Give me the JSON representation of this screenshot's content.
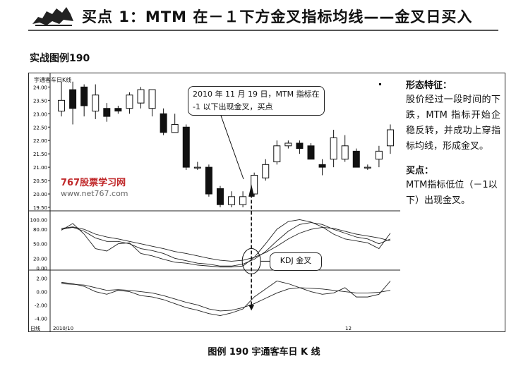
{
  "header": {
    "title": "买点 1：MTM 在－１下方金叉指标均线——金叉日买入",
    "figure_label": "实战图例190"
  },
  "chart": {
    "stock_name": "宇通客车日K线",
    "callout": "2010 年 11 月 19 日，MTM 指标在 -1 以下出现金叉，买点",
    "kdj_label": "KDJ 金叉",
    "watermark": "767股票学习网",
    "watermark_url": "www.net767.com",
    "date_left": "2010/10",
    "date_right": "12",
    "corner_label": "日线"
  },
  "chart_data": [
    {
      "type": "candlestick",
      "title": "宇通客车日K线",
      "y_ticks": [
        "24.00",
        "23.50",
        "23.00",
        "22.50",
        "22.00",
        "21.50",
        "21.00",
        "20.50",
        "20.00",
        "19.50"
      ],
      "ylim": [
        19.5,
        24.3
      ],
      "x_tick_labels": [
        "2010/10",
        "12"
      ],
      "candles": [
        {
          "open": 23.1,
          "close": 23.5,
          "high": 24.2,
          "low": 22.9
        },
        {
          "open": 23.9,
          "close": 23.2,
          "high": 24.2,
          "low": 22.6
        },
        {
          "open": 24.0,
          "close": 23.3,
          "high": 24.1,
          "low": 22.9
        },
        {
          "open": 23.1,
          "close": 23.7,
          "high": 24.1,
          "low": 22.8
        },
        {
          "open": 23.2,
          "close": 22.9,
          "high": 23.4,
          "low": 22.7
        },
        {
          "open": 23.2,
          "close": 23.1,
          "high": 23.3,
          "low": 23.0
        },
        {
          "open": 23.2,
          "close": 23.7,
          "high": 23.8,
          "low": 23.0
        },
        {
          "open": 23.4,
          "close": 23.9,
          "high": 24.0,
          "low": 23.2
        },
        {
          "open": 23.2,
          "close": 23.9,
          "high": 23.9,
          "low": 22.9
        },
        {
          "open": 23.0,
          "close": 22.3,
          "high": 23.2,
          "low": 22.2
        },
        {
          "open": 22.3,
          "close": 22.6,
          "high": 23.0,
          "low": 22.3
        },
        {
          "open": 22.5,
          "close": 21.0,
          "high": 22.6,
          "low": 20.9
        },
        {
          "open": 21.0,
          "close": 21.0,
          "high": 21.2,
          "low": 20.9
        },
        {
          "open": 21.0,
          "close": 20.0,
          "high": 21.1,
          "low": 19.9
        },
        {
          "open": 20.2,
          "close": 19.6,
          "high": 20.3,
          "low": 19.5
        },
        {
          "open": 19.6,
          "close": 19.9,
          "high": 20.1,
          "low": 19.5
        },
        {
          "open": 19.6,
          "close": 19.9,
          "high": 20.1,
          "low": 19.5
        },
        {
          "open": 20.0,
          "close": 20.7,
          "high": 20.8,
          "low": 19.9
        },
        {
          "open": 20.6,
          "close": 21.1,
          "high": 21.3,
          "low": 20.5
        },
        {
          "open": 21.2,
          "close": 21.8,
          "high": 22.0,
          "low": 21.1
        },
        {
          "open": 21.8,
          "close": 21.9,
          "high": 22.0,
          "low": 21.7
        },
        {
          "open": 21.9,
          "close": 21.7,
          "high": 22.0,
          "low": 21.5
        },
        {
          "open": 21.8,
          "close": 21.3,
          "high": 21.9,
          "low": 21.3
        },
        {
          "open": 21.1,
          "close": 21.0,
          "high": 21.3,
          "low": 20.7
        },
        {
          "open": 21.3,
          "close": 22.1,
          "high": 22.4,
          "low": 21.0
        },
        {
          "open": 21.3,
          "close": 21.8,
          "high": 22.2,
          "low": 21.2
        },
        {
          "open": 21.6,
          "close": 21.0,
          "high": 21.7,
          "low": 21.0
        },
        {
          "open": 21.0,
          "close": 21.0,
          "high": 21.1,
          "low": 20.9
        },
        {
          "open": 21.3,
          "close": 21.6,
          "high": 21.8,
          "low": 21.0
        },
        {
          "open": 21.8,
          "close": 22.4,
          "high": 22.6,
          "low": 21.5
        }
      ]
    },
    {
      "type": "line",
      "title": "KDJ",
      "y_ticks": [
        "100.00",
        "80.00",
        "50.00",
        "20.00",
        "0.00"
      ],
      "ylim": [
        0,
        105
      ],
      "series": [
        {
          "values": [
            82,
            85,
            80,
            70,
            64,
            60,
            55,
            50,
            45,
            40,
            34,
            30,
            25,
            20,
            16,
            14,
            16,
            22,
            32,
            45,
            60,
            72,
            80,
            84,
            82,
            76,
            70,
            66,
            62,
            56
          ]
        },
        {
          "values": [
            80,
            84,
            76,
            62,
            55,
            55,
            50,
            40,
            36,
            30,
            20,
            15,
            10,
            8,
            4,
            4,
            8,
            18,
            34,
            56,
            76,
            90,
            94,
            90,
            80,
            72,
            64,
            60,
            50,
            60
          ]
        },
        {
          "values": [
            78,
            92,
            70,
            40,
            35,
            50,
            52,
            30,
            25,
            18,
            12,
            10,
            6,
            4,
            2,
            2,
            4,
            22,
            50,
            80,
            96,
            100,
            95,
            85,
            70,
            60,
            56,
            52,
            40,
            72
          ]
        }
      ]
    },
    {
      "type": "line",
      "title": "MTM",
      "y_ticks": [
        "2.00",
        "0.00",
        "-2.00",
        "-4.00"
      ],
      "ylim": [
        -4.5,
        2.5
      ],
      "series": [
        {
          "values": [
            1.2,
            1.1,
            1.0,
            0.6,
            0.2,
            0.3,
            0.2,
            0.0,
            -0.2,
            -0.6,
            -1.1,
            -1.6,
            -2.0,
            -2.6,
            -2.9,
            -2.8,
            -2.4,
            -1.8,
            -1.0,
            -0.2,
            0.4,
            0.6,
            0.5,
            0.4,
            0.2,
            0.0,
            -0.2,
            -0.2,
            -0.1,
            0.2
          ]
        },
        {
          "values": [
            1.4,
            1.2,
            0.8,
            0.0,
            -0.4,
            0.2,
            0.0,
            -0.6,
            -0.8,
            -1.2,
            -1.8,
            -2.4,
            -2.8,
            -3.3,
            -3.6,
            -3.2,
            -2.6,
            -0.8,
            0.4,
            1.6,
            1.2,
            0.6,
            0.0,
            -0.4,
            -0.2,
            0.6,
            -0.8,
            -0.8,
            -0.4,
            1.6
          ]
        }
      ]
    }
  ],
  "sidebar": {
    "heading1": "形态特征：",
    "text1": "股价经过一段时间的下跌，MTM 指标开始企稳反转，并成功上穿指标均线，形成金叉。",
    "heading2": "买点：",
    "text2": "MTM指标低位（－1以下）出现金叉。"
  },
  "caption": "图例 190    宇通客车日 K 线"
}
